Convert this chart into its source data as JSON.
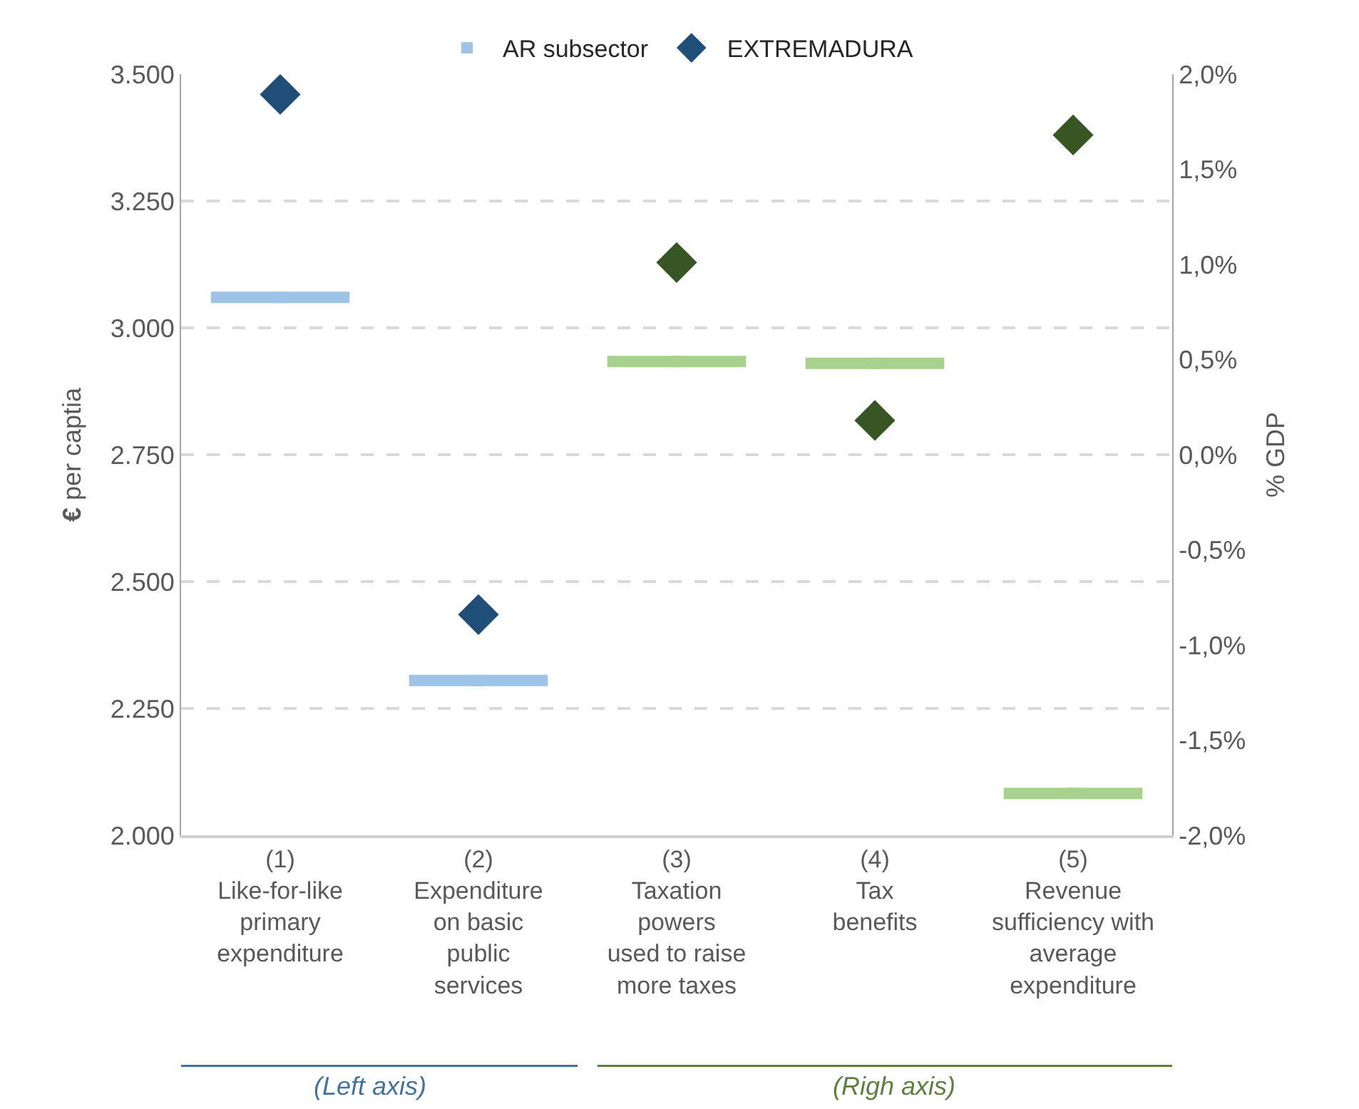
{
  "chart_data": {
    "type": "scatter",
    "categories": [
      "(1)\nLike-for-like\nprimary\nexpenditure",
      "(2)\nExpenditure\non basic\npublic\nservices",
      "(3)\nTaxation\npowers\nused to raise\nmore taxes",
      "(4)\nTax\nbenefits",
      "(5)\nRevenue\nsufficiency with\naverage\nexpenditure"
    ],
    "series": [
      {
        "name": "AR subsector",
        "marker": "square",
        "colors": [
          "#9dc3e6",
          "#9dc3e6",
          null,
          null,
          null
        ],
        "values": [
          3060,
          2305,
          null,
          null,
          null
        ]
      },
      {
        "marker": "square",
        "axis": "y2",
        "colors": [
          null,
          null,
          "#a9d18e",
          "#a9d18e",
          "#a9d18e"
        ],
        "values": [
          null,
          null,
          0.49,
          0.48,
          -1.78
        ]
      },
      {
        "name": "EXTREMADURA",
        "marker": "diamond",
        "colors": [
          "#1f4e79",
          "#1f4e79",
          null,
          null,
          null
        ],
        "values": [
          3460,
          2435,
          null,
          null,
          null
        ]
      },
      {
        "marker": "diamond",
        "axis": "y2",
        "colors": [
          null,
          null,
          "#375623",
          "#375623",
          "#375623"
        ],
        "values": [
          null,
          null,
          1.01,
          0.18,
          1.68
        ]
      }
    ],
    "ylabel": "€ per captia",
    "y2label": "% GDP",
    "ylim": [
      2000,
      3500
    ],
    "yticks": [
      {
        "value": 2000,
        "label": "2.000"
      },
      {
        "value": 2250,
        "label": "2.250"
      },
      {
        "value": 2500,
        "label": "2.500"
      },
      {
        "value": 2750,
        "label": "2.750"
      },
      {
        "value": 3000,
        "label": "3.000"
      },
      {
        "value": 3250,
        "label": "3.250"
      },
      {
        "value": 3500,
        "label": "3.500"
      }
    ],
    "y2lim": [
      -2.0,
      2.0
    ],
    "y2ticks": [
      {
        "value": -2.0,
        "label": "-2,0%"
      },
      {
        "value": -1.5,
        "label": "-1,5%"
      },
      {
        "value": -1.0,
        "label": "-1,0%"
      },
      {
        "value": -0.5,
        "label": "-0,5%"
      },
      {
        "value": 0.0,
        "label": "0,0%"
      },
      {
        "value": 0.5,
        "label": "0,5%"
      },
      {
        "value": 1.0,
        "label": "1,0%"
      },
      {
        "value": 1.5,
        "label": "1,5%"
      },
      {
        "value": 2.0,
        "label": "2,0%"
      }
    ],
    "grid": "y",
    "legend": "top",
    "annotations": [
      "(Left axis)",
      "(Righ axis)"
    ]
  }
}
